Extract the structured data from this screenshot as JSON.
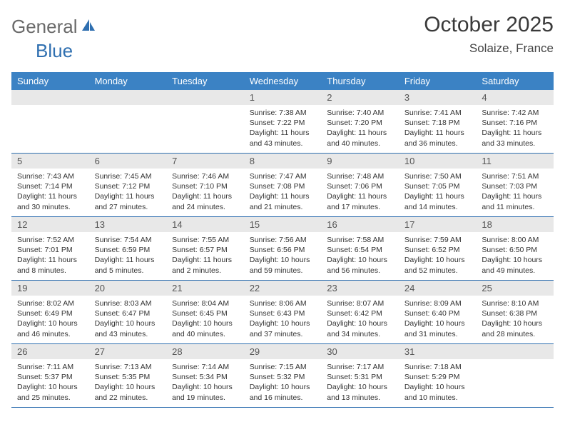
{
  "brand": {
    "general": "General",
    "blue": "Blue"
  },
  "title": {
    "month": "October 2025",
    "location": "Solaize, France"
  },
  "colors": {
    "header_bg": "#3b82c4",
    "header_text": "#ffffff",
    "daynum_bg": "#e8e8e8",
    "rule": "#2f6fb0",
    "logo_gray": "#6a6a6a",
    "logo_blue": "#2f6fb0"
  },
  "weekdays": [
    "Sunday",
    "Monday",
    "Tuesday",
    "Wednesday",
    "Thursday",
    "Friday",
    "Saturday"
  ],
  "weeks": [
    [
      {
        "n": "",
        "sr": "",
        "ss": "",
        "dl": ""
      },
      {
        "n": "",
        "sr": "",
        "ss": "",
        "dl": ""
      },
      {
        "n": "",
        "sr": "",
        "ss": "",
        "dl": ""
      },
      {
        "n": "1",
        "sr": "Sunrise: 7:38 AM",
        "ss": "Sunset: 7:22 PM",
        "dl": "Daylight: 11 hours and 43 minutes."
      },
      {
        "n": "2",
        "sr": "Sunrise: 7:40 AM",
        "ss": "Sunset: 7:20 PM",
        "dl": "Daylight: 11 hours and 40 minutes."
      },
      {
        "n": "3",
        "sr": "Sunrise: 7:41 AM",
        "ss": "Sunset: 7:18 PM",
        "dl": "Daylight: 11 hours and 36 minutes."
      },
      {
        "n": "4",
        "sr": "Sunrise: 7:42 AM",
        "ss": "Sunset: 7:16 PM",
        "dl": "Daylight: 11 hours and 33 minutes."
      }
    ],
    [
      {
        "n": "5",
        "sr": "Sunrise: 7:43 AM",
        "ss": "Sunset: 7:14 PM",
        "dl": "Daylight: 11 hours and 30 minutes."
      },
      {
        "n": "6",
        "sr": "Sunrise: 7:45 AM",
        "ss": "Sunset: 7:12 PM",
        "dl": "Daylight: 11 hours and 27 minutes."
      },
      {
        "n": "7",
        "sr": "Sunrise: 7:46 AM",
        "ss": "Sunset: 7:10 PM",
        "dl": "Daylight: 11 hours and 24 minutes."
      },
      {
        "n": "8",
        "sr": "Sunrise: 7:47 AM",
        "ss": "Sunset: 7:08 PM",
        "dl": "Daylight: 11 hours and 21 minutes."
      },
      {
        "n": "9",
        "sr": "Sunrise: 7:48 AM",
        "ss": "Sunset: 7:06 PM",
        "dl": "Daylight: 11 hours and 17 minutes."
      },
      {
        "n": "10",
        "sr": "Sunrise: 7:50 AM",
        "ss": "Sunset: 7:05 PM",
        "dl": "Daylight: 11 hours and 14 minutes."
      },
      {
        "n": "11",
        "sr": "Sunrise: 7:51 AM",
        "ss": "Sunset: 7:03 PM",
        "dl": "Daylight: 11 hours and 11 minutes."
      }
    ],
    [
      {
        "n": "12",
        "sr": "Sunrise: 7:52 AM",
        "ss": "Sunset: 7:01 PM",
        "dl": "Daylight: 11 hours and 8 minutes."
      },
      {
        "n": "13",
        "sr": "Sunrise: 7:54 AM",
        "ss": "Sunset: 6:59 PM",
        "dl": "Daylight: 11 hours and 5 minutes."
      },
      {
        "n": "14",
        "sr": "Sunrise: 7:55 AM",
        "ss": "Sunset: 6:57 PM",
        "dl": "Daylight: 11 hours and 2 minutes."
      },
      {
        "n": "15",
        "sr": "Sunrise: 7:56 AM",
        "ss": "Sunset: 6:56 PM",
        "dl": "Daylight: 10 hours and 59 minutes."
      },
      {
        "n": "16",
        "sr": "Sunrise: 7:58 AM",
        "ss": "Sunset: 6:54 PM",
        "dl": "Daylight: 10 hours and 56 minutes."
      },
      {
        "n": "17",
        "sr": "Sunrise: 7:59 AM",
        "ss": "Sunset: 6:52 PM",
        "dl": "Daylight: 10 hours and 52 minutes."
      },
      {
        "n": "18",
        "sr": "Sunrise: 8:00 AM",
        "ss": "Sunset: 6:50 PM",
        "dl": "Daylight: 10 hours and 49 minutes."
      }
    ],
    [
      {
        "n": "19",
        "sr": "Sunrise: 8:02 AM",
        "ss": "Sunset: 6:49 PM",
        "dl": "Daylight: 10 hours and 46 minutes."
      },
      {
        "n": "20",
        "sr": "Sunrise: 8:03 AM",
        "ss": "Sunset: 6:47 PM",
        "dl": "Daylight: 10 hours and 43 minutes."
      },
      {
        "n": "21",
        "sr": "Sunrise: 8:04 AM",
        "ss": "Sunset: 6:45 PM",
        "dl": "Daylight: 10 hours and 40 minutes."
      },
      {
        "n": "22",
        "sr": "Sunrise: 8:06 AM",
        "ss": "Sunset: 6:43 PM",
        "dl": "Daylight: 10 hours and 37 minutes."
      },
      {
        "n": "23",
        "sr": "Sunrise: 8:07 AM",
        "ss": "Sunset: 6:42 PM",
        "dl": "Daylight: 10 hours and 34 minutes."
      },
      {
        "n": "24",
        "sr": "Sunrise: 8:09 AM",
        "ss": "Sunset: 6:40 PM",
        "dl": "Daylight: 10 hours and 31 minutes."
      },
      {
        "n": "25",
        "sr": "Sunrise: 8:10 AM",
        "ss": "Sunset: 6:38 PM",
        "dl": "Daylight: 10 hours and 28 minutes."
      }
    ],
    [
      {
        "n": "26",
        "sr": "Sunrise: 7:11 AM",
        "ss": "Sunset: 5:37 PM",
        "dl": "Daylight: 10 hours and 25 minutes."
      },
      {
        "n": "27",
        "sr": "Sunrise: 7:13 AM",
        "ss": "Sunset: 5:35 PM",
        "dl": "Daylight: 10 hours and 22 minutes."
      },
      {
        "n": "28",
        "sr": "Sunrise: 7:14 AM",
        "ss": "Sunset: 5:34 PM",
        "dl": "Daylight: 10 hours and 19 minutes."
      },
      {
        "n": "29",
        "sr": "Sunrise: 7:15 AM",
        "ss": "Sunset: 5:32 PM",
        "dl": "Daylight: 10 hours and 16 minutes."
      },
      {
        "n": "30",
        "sr": "Sunrise: 7:17 AM",
        "ss": "Sunset: 5:31 PM",
        "dl": "Daylight: 10 hours and 13 minutes."
      },
      {
        "n": "31",
        "sr": "Sunrise: 7:18 AM",
        "ss": "Sunset: 5:29 PM",
        "dl": "Daylight: 10 hours and 10 minutes."
      },
      {
        "n": "",
        "sr": "",
        "ss": "",
        "dl": ""
      }
    ]
  ]
}
